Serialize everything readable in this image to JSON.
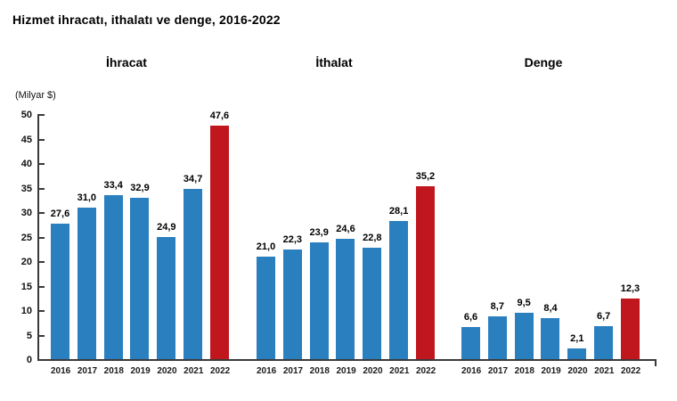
{
  "title": "Hizmet ihracatı, ithalatı ve denge, 2016-2022",
  "chart_data": {
    "type": "bar",
    "title": "Hizmet ihracatı, ithalatı ve denge, 2016-2022",
    "ylabel": "(Milyar $)",
    "xlabel": "",
    "ylim": [
      0,
      50
    ],
    "y_ticks": [
      0,
      5,
      10,
      15,
      20,
      25,
      30,
      35,
      40,
      45,
      50
    ],
    "grid": false,
    "legend": null,
    "categories": [
      "2016",
      "2017",
      "2018",
      "2019",
      "2020",
      "2021",
      "2022"
    ],
    "groups": [
      {
        "name": "İhracat",
        "values": [
          27.6,
          31.0,
          33.4,
          32.9,
          24.9,
          34.7,
          47.6
        ],
        "value_labels": [
          "27,6",
          "31,0",
          "33,4",
          "32,9",
          "24,9",
          "34,7",
          "47,6"
        ]
      },
      {
        "name": "İthalat",
        "values": [
          21.0,
          22.3,
          23.9,
          24.6,
          22.8,
          28.1,
          35.2
        ],
        "value_labels": [
          "21,0",
          "22,3",
          "23,9",
          "24,6",
          "22,8",
          "28,1",
          "35,2"
        ]
      },
      {
        "name": "Denge",
        "values": [
          6.6,
          8.7,
          9.5,
          8.4,
          2.1,
          6.7,
          12.3
        ],
        "value_labels": [
          "6,6",
          "8,7",
          "9,5",
          "8,4",
          "2,1",
          "6,7",
          "12,3"
        ]
      }
    ],
    "highlight_category": "2022",
    "colors": {
      "bar": "#2a7fbf",
      "highlight": "#c0161d",
      "axis": "#3a3a3a",
      "text": "#000000"
    }
  }
}
